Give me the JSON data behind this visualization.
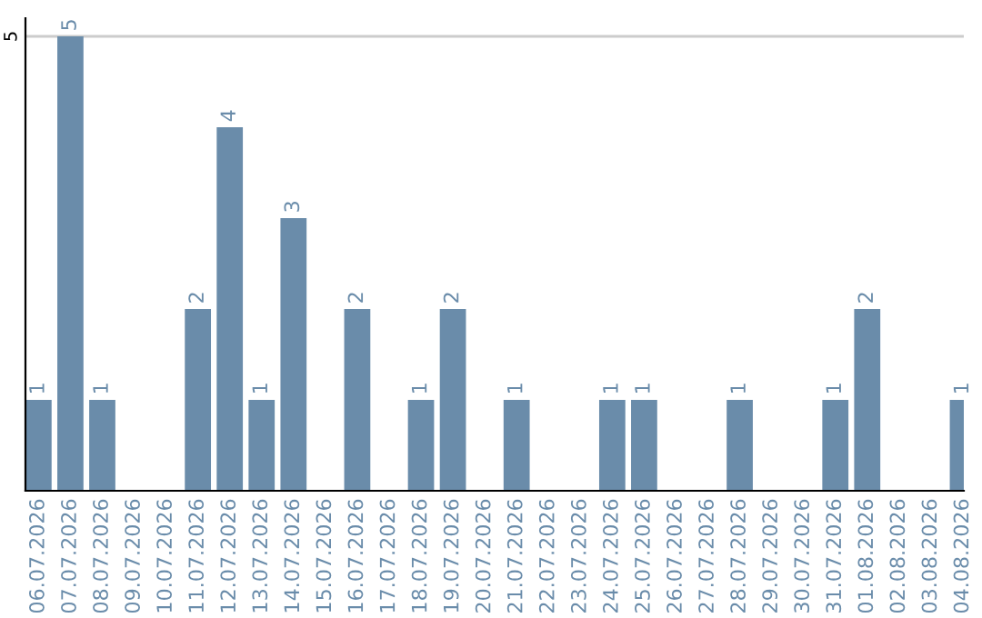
{
  "chart_data": {
    "type": "bar",
    "categories": [
      "06.07.2026",
      "07.07.2026",
      "08.07.2026",
      "09.07.2026",
      "10.07.2026",
      "11.07.2026",
      "12.07.2026",
      "13.07.2026",
      "14.07.2026",
      "15.07.2026",
      "16.07.2026",
      "17.07.2026",
      "18.07.2026",
      "19.07.2026",
      "20.07.2026",
      "21.07.2026",
      "22.07.2026",
      "23.07.2026",
      "24.07.2026",
      "25.07.2026",
      "26.07.2026",
      "27.07.2026",
      "28.07.2026",
      "29.07.2026",
      "30.07.2026",
      "31.07.2026",
      "01.08.2026",
      "02.08.2026",
      "03.08.2026",
      "04.08.2026"
    ],
    "values": [
      1,
      5,
      1,
      0,
      0,
      2,
      4,
      1,
      3,
      0,
      2,
      0,
      1,
      2,
      0,
      1,
      0,
      0,
      1,
      1,
      0,
      0,
      1,
      0,
      0,
      1,
      2,
      0,
      0,
      1
    ],
    "value_labels": [
      "1",
      "5",
      "1",
      null,
      null,
      "2",
      "4",
      "1",
      "3",
      null,
      "2",
      null,
      "1",
      "2",
      null,
      "1",
      null,
      null,
      "1",
      "1",
      null,
      null,
      "1",
      null,
      null,
      "1",
      "2",
      null,
      null,
      "1"
    ],
    "color": "#6a8caa",
    "ylim": [
      0,
      5.2
    ],
    "yticks": [
      5
    ],
    "grid": "y"
  }
}
